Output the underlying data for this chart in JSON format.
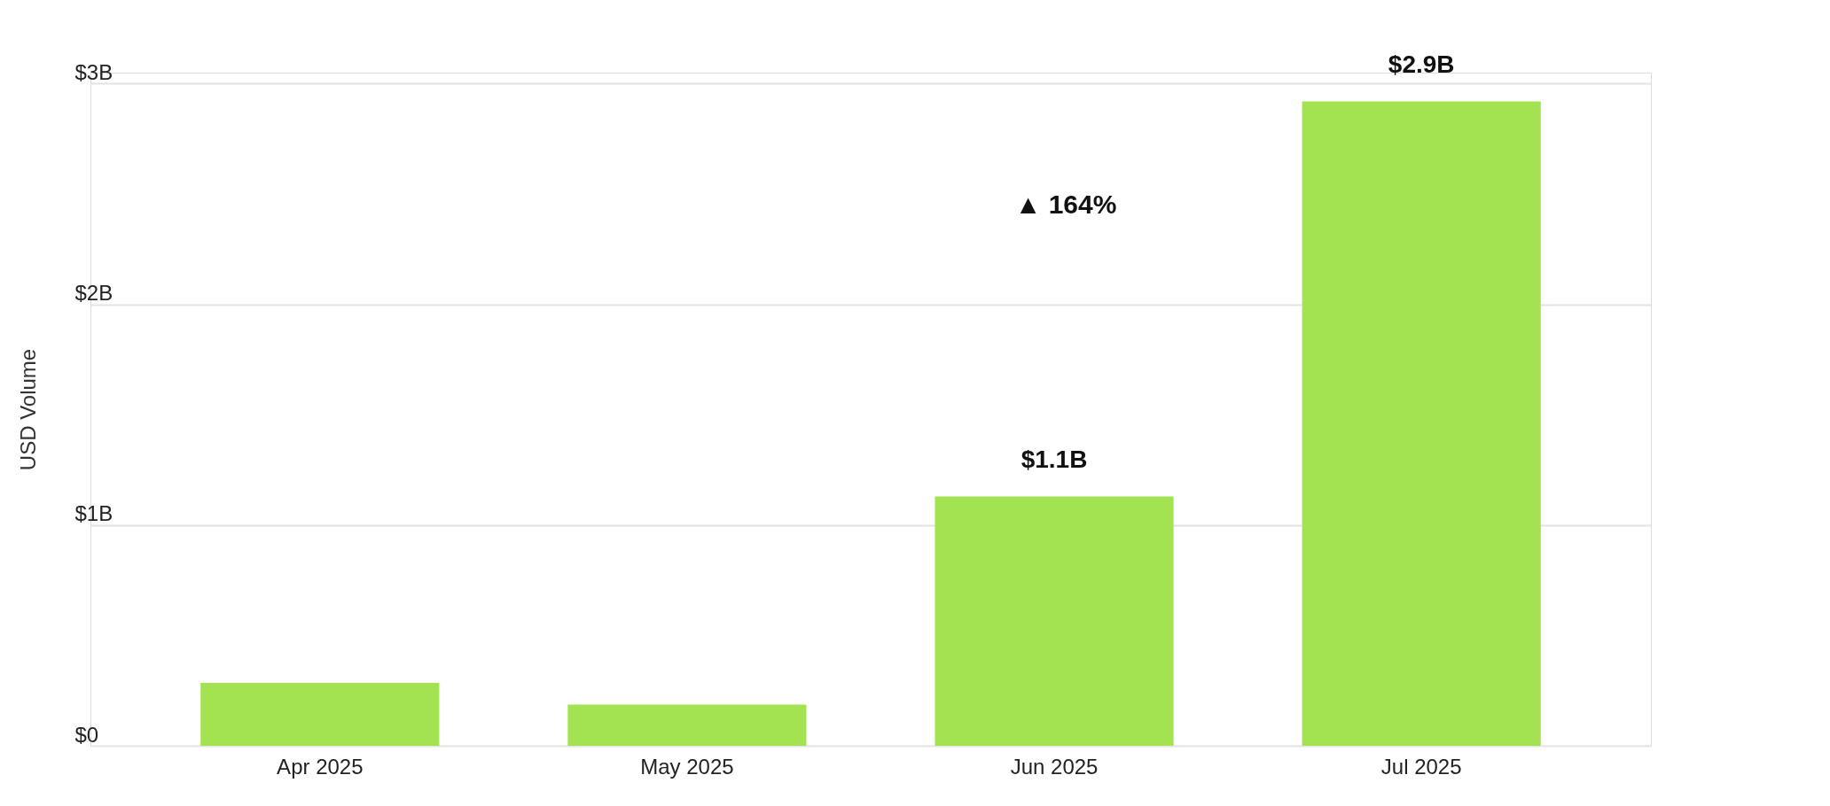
{
  "chart_data": {
    "type": "bar",
    "ylabel": "USD Volume",
    "categories": [
      "Apr 2025",
      "May 2025",
      "Jun 2025",
      "Jul 2025"
    ],
    "values": [
      0.285,
      0.187,
      1.13,
      2.92
    ],
    "color": "#a3e352",
    "value_labels": [
      null,
      null,
      "$1.1B",
      "$2.9B"
    ],
    "ylim": [
      0,
      3.05
    ],
    "yticks": [
      {
        "value": 0,
        "label": "$0"
      },
      {
        "value": 1,
        "label": "$1B"
      },
      {
        "value": 2,
        "label": "$2B"
      },
      {
        "value": 3,
        "label": "$3B"
      }
    ],
    "grid": "y",
    "annotations": [
      "▲ 164%"
    ]
  }
}
